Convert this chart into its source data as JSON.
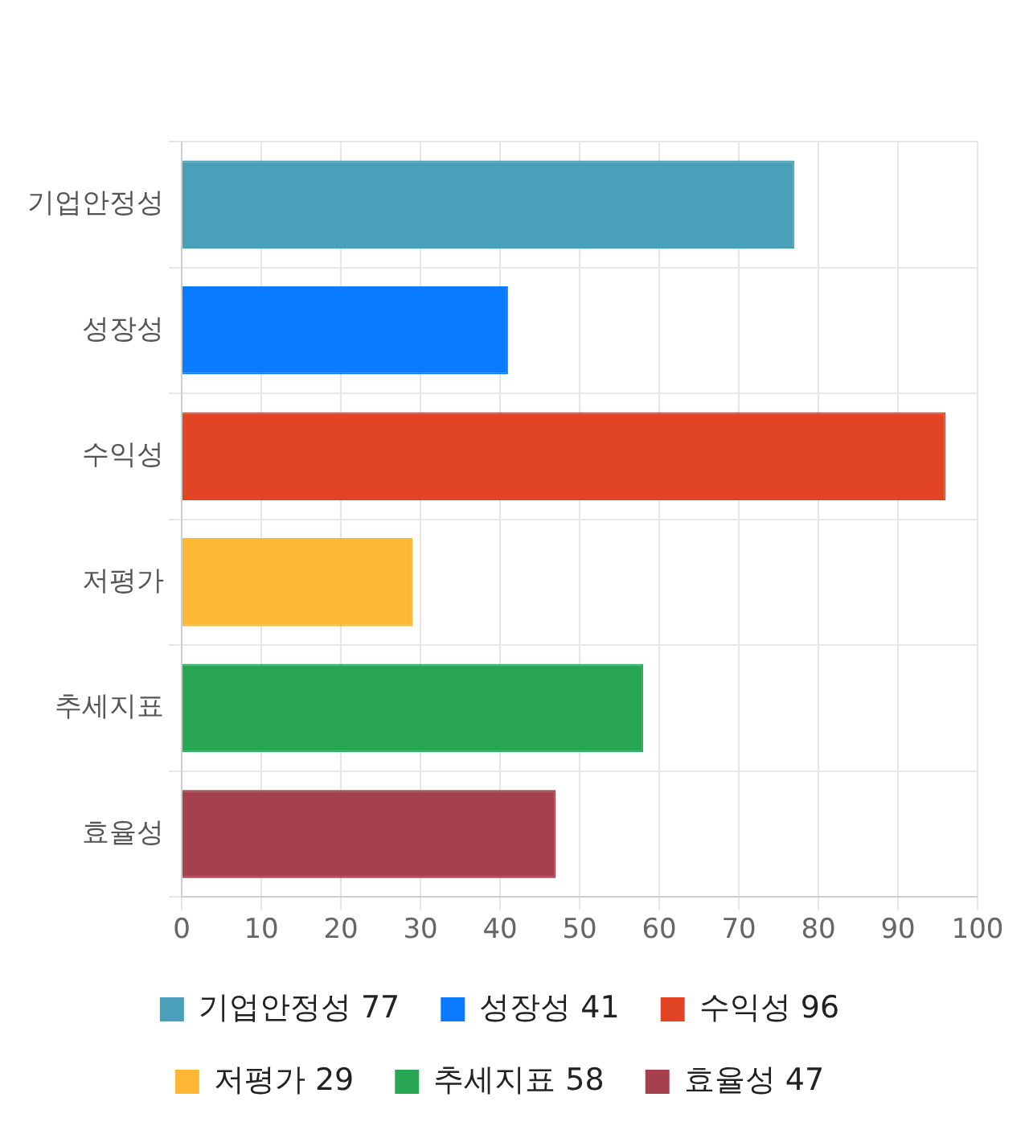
{
  "chart_data": {
    "type": "bar",
    "orientation": "horizontal",
    "stacked": true,
    "categories": [
      "기업안정성",
      "성장성",
      "수익성",
      "저평가",
      "추세지표",
      "효율성"
    ],
    "series": [
      {
        "name": "기업안정성 77",
        "color": "#4aa0b9",
        "values": [
          77,
          null,
          null,
          null,
          null,
          null
        ]
      },
      {
        "name": "성장성 41",
        "color": "#0a7aff",
        "values": [
          null,
          41,
          null,
          null,
          null,
          null
        ]
      },
      {
        "name": "수익성 96",
        "color": "#e24524",
        "values": [
          null,
          null,
          96,
          null,
          null,
          null
        ]
      },
      {
        "name": "저평가 29",
        "color": "#fdb732",
        "values": [
          null,
          null,
          null,
          29,
          null,
          null
        ]
      },
      {
        "name": "추세지표 58",
        "color": "#29a654",
        "values": [
          null,
          null,
          null,
          null,
          58,
          null
        ]
      },
      {
        "name": "효율성 47",
        "color": "#a5404e",
        "values": [
          null,
          null,
          null,
          null,
          null,
          47
        ]
      }
    ],
    "xlim": [
      0,
      100
    ],
    "xticks": [
      0,
      10,
      20,
      30,
      40,
      50,
      60,
      70,
      80,
      90,
      100
    ],
    "grid": true,
    "legend": "bottom"
  }
}
